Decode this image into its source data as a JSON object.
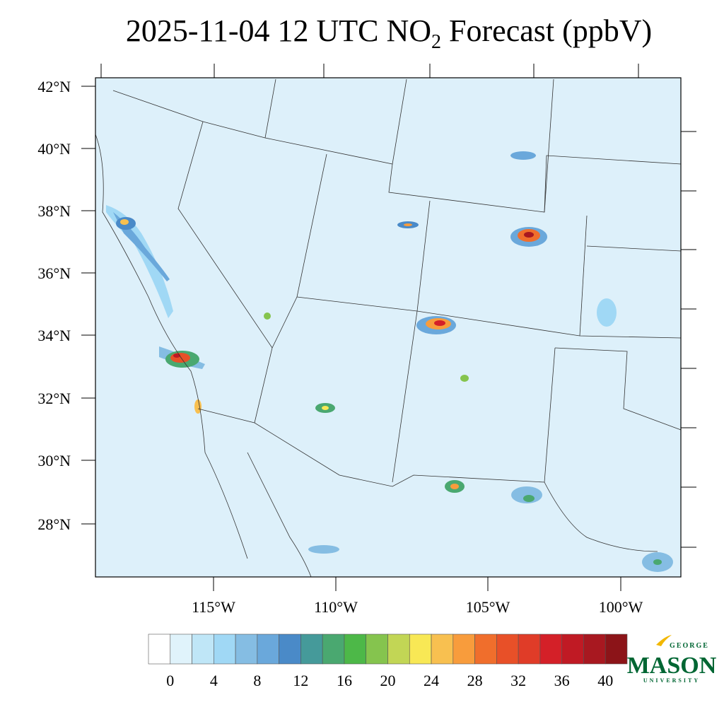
{
  "title": {
    "main": "2025-11-04 12 UTC NO",
    "sub": "2",
    "rest": " Forecast (ppbV)"
  },
  "map": {
    "lat_labels": [
      "42°N",
      "40°N",
      "38°N",
      "36°N",
      "34°N",
      "32°N",
      "30°N",
      "28°N"
    ],
    "lon_labels": [
      "115°W",
      "110°W",
      "105°W",
      "100°W"
    ]
  },
  "colorbar": {
    "colors": [
      "#ffffff",
      "#e0f3fb",
      "#bfe6f7",
      "#a0d8f5",
      "#85bde3",
      "#6aa8db",
      "#4a8ac8",
      "#459a9a",
      "#4aa870",
      "#4db848",
      "#85c44e",
      "#c2d655",
      "#f8e855",
      "#f8c050",
      "#f89c3c",
      "#f06e2c",
      "#e85028",
      "#e03c28",
      "#d42028",
      "#c01a24",
      "#a81820",
      "#8c1418"
    ],
    "ticks": [
      0,
      4,
      8,
      12,
      16,
      20,
      24,
      28,
      32,
      36,
      40
    ]
  },
  "logo": {
    "top": "GEORGE",
    "main": "MASON",
    "bottom": "UNIVERSITY"
  }
}
